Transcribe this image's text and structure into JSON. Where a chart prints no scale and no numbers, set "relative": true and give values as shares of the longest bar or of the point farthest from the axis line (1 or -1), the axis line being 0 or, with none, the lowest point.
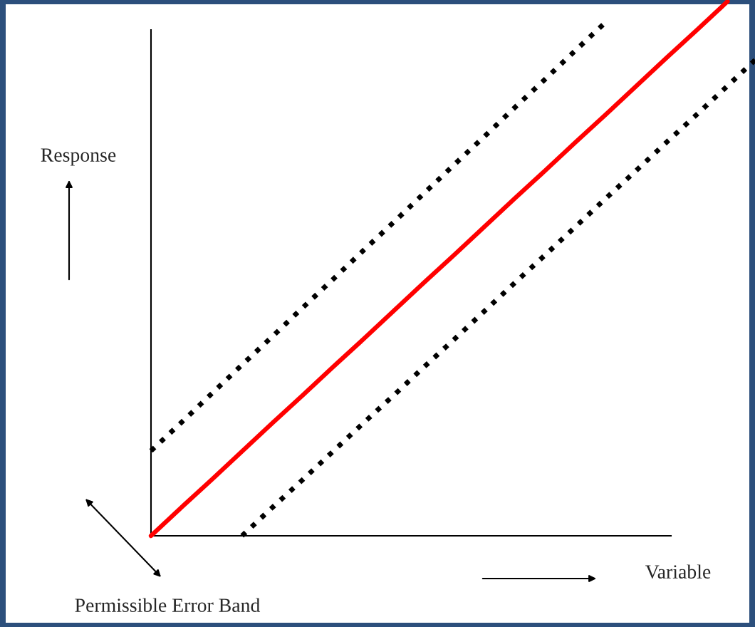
{
  "chart_data": {
    "type": "line",
    "relative": true,
    "xlabel": "Variable",
    "ylabel": "Response",
    "legend": false,
    "grid": false,
    "annotations": [
      "Permissible Error Band"
    ],
    "categories": [
      null,
      null,
      null,
      null,
      null,
      null,
      null,
      null,
      null,
      null,
      null,
      null,
      null,
      null,
      null,
      null,
      null,
      null,
      null,
      null,
      null
    ],
    "series": [
      {
        "color": "#000000",
        "line_style": "dotted",
        "values": [
          0.159,
          0.212,
          0.266,
          0.32,
          0.373,
          0.427,
          0.48,
          0.534,
          0.587,
          0.641,
          0.695,
          0.748,
          0.802,
          0.855,
          0.909,
          0.962,
          null,
          null,
          null,
          null,
          null
        ]
      },
      {
        "color": "#ff0000",
        "line_style": "solid",
        "values": [
          0,
          0.053,
          0.105,
          0.158,
          0.211,
          0.263,
          0.316,
          0.368,
          0.421,
          0.474,
          0.526,
          0.579,
          0.632,
          0.684,
          0.737,
          0.789,
          0.842,
          0.895,
          0.947,
          1.0,
          null
        ]
      },
      {
        "color": "#000000",
        "line_style": "dotted",
        "values": [
          null,
          null,
          null,
          0,
          0.053,
          0.105,
          0.158,
          0.211,
          0.263,
          0.316,
          0.368,
          0.421,
          0.474,
          0.526,
          0.579,
          0.632,
          0.684,
          0.737,
          0.789,
          0.842,
          0.895
        ]
      }
    ]
  }
}
